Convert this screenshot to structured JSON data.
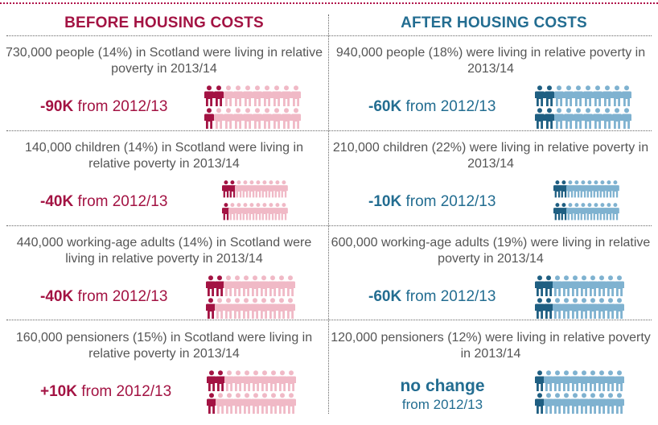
{
  "headers": {
    "before": "BEFORE HOUSING COSTS",
    "after": "AFTER HOUSING COSTS"
  },
  "colors": {
    "before_dark": "#a31343",
    "before_light": "#f0b9c6",
    "after_dark": "#1f5f82",
    "after_light": "#7fb2d0"
  },
  "icons": {
    "person": "person-icon"
  },
  "rows": [
    {
      "before": {
        "text": "730,000 people (14%) in Scotland were living in relative poverty in 2013/14",
        "change": "-90K",
        "suffix": " from 2012/13",
        "share": 0.14
      },
      "after": {
        "text": "940,000 people (18%) were living in relative poverty in 2013/14",
        "change": "-60K",
        "suffix": " from 2012/13",
        "share": 0.18
      }
    },
    {
      "before": {
        "text": "140,000 children (14%) in Scotland were living in relative poverty in 2013/14",
        "change": "-40K",
        "suffix": " from 2012/13",
        "share": 0.14
      },
      "after": {
        "text": "210,000 children (22%) were living in relative poverty in 2013/14",
        "change": "-10K",
        "suffix": " from 2012/13",
        "share": 0.22
      }
    },
    {
      "before": {
        "text": "440,000 working-age adults (14%) in Scotland were living in relative poverty in 2013/14",
        "change": "-40K",
        "suffix": " from 2012/13",
        "share": 0.14
      },
      "after": {
        "text": "600,000 working-age adults (19%) were living in relative poverty in 2013/14",
        "change": "-60K",
        "suffix": " from 2012/13",
        "share": 0.19
      }
    },
    {
      "before": {
        "text": "160,000 pensioners (15%) in Scotland were living in relative poverty in 2013/14",
        "change": "+10K",
        "suffix": " from 2012/13",
        "share": 0.15
      },
      "after": {
        "text": "120,000 pensioners (12%) were living in relative poverty in 2013/14",
        "change_big": "no change",
        "change_small": "from 2012/13",
        "share": 0.12
      }
    }
  ]
}
